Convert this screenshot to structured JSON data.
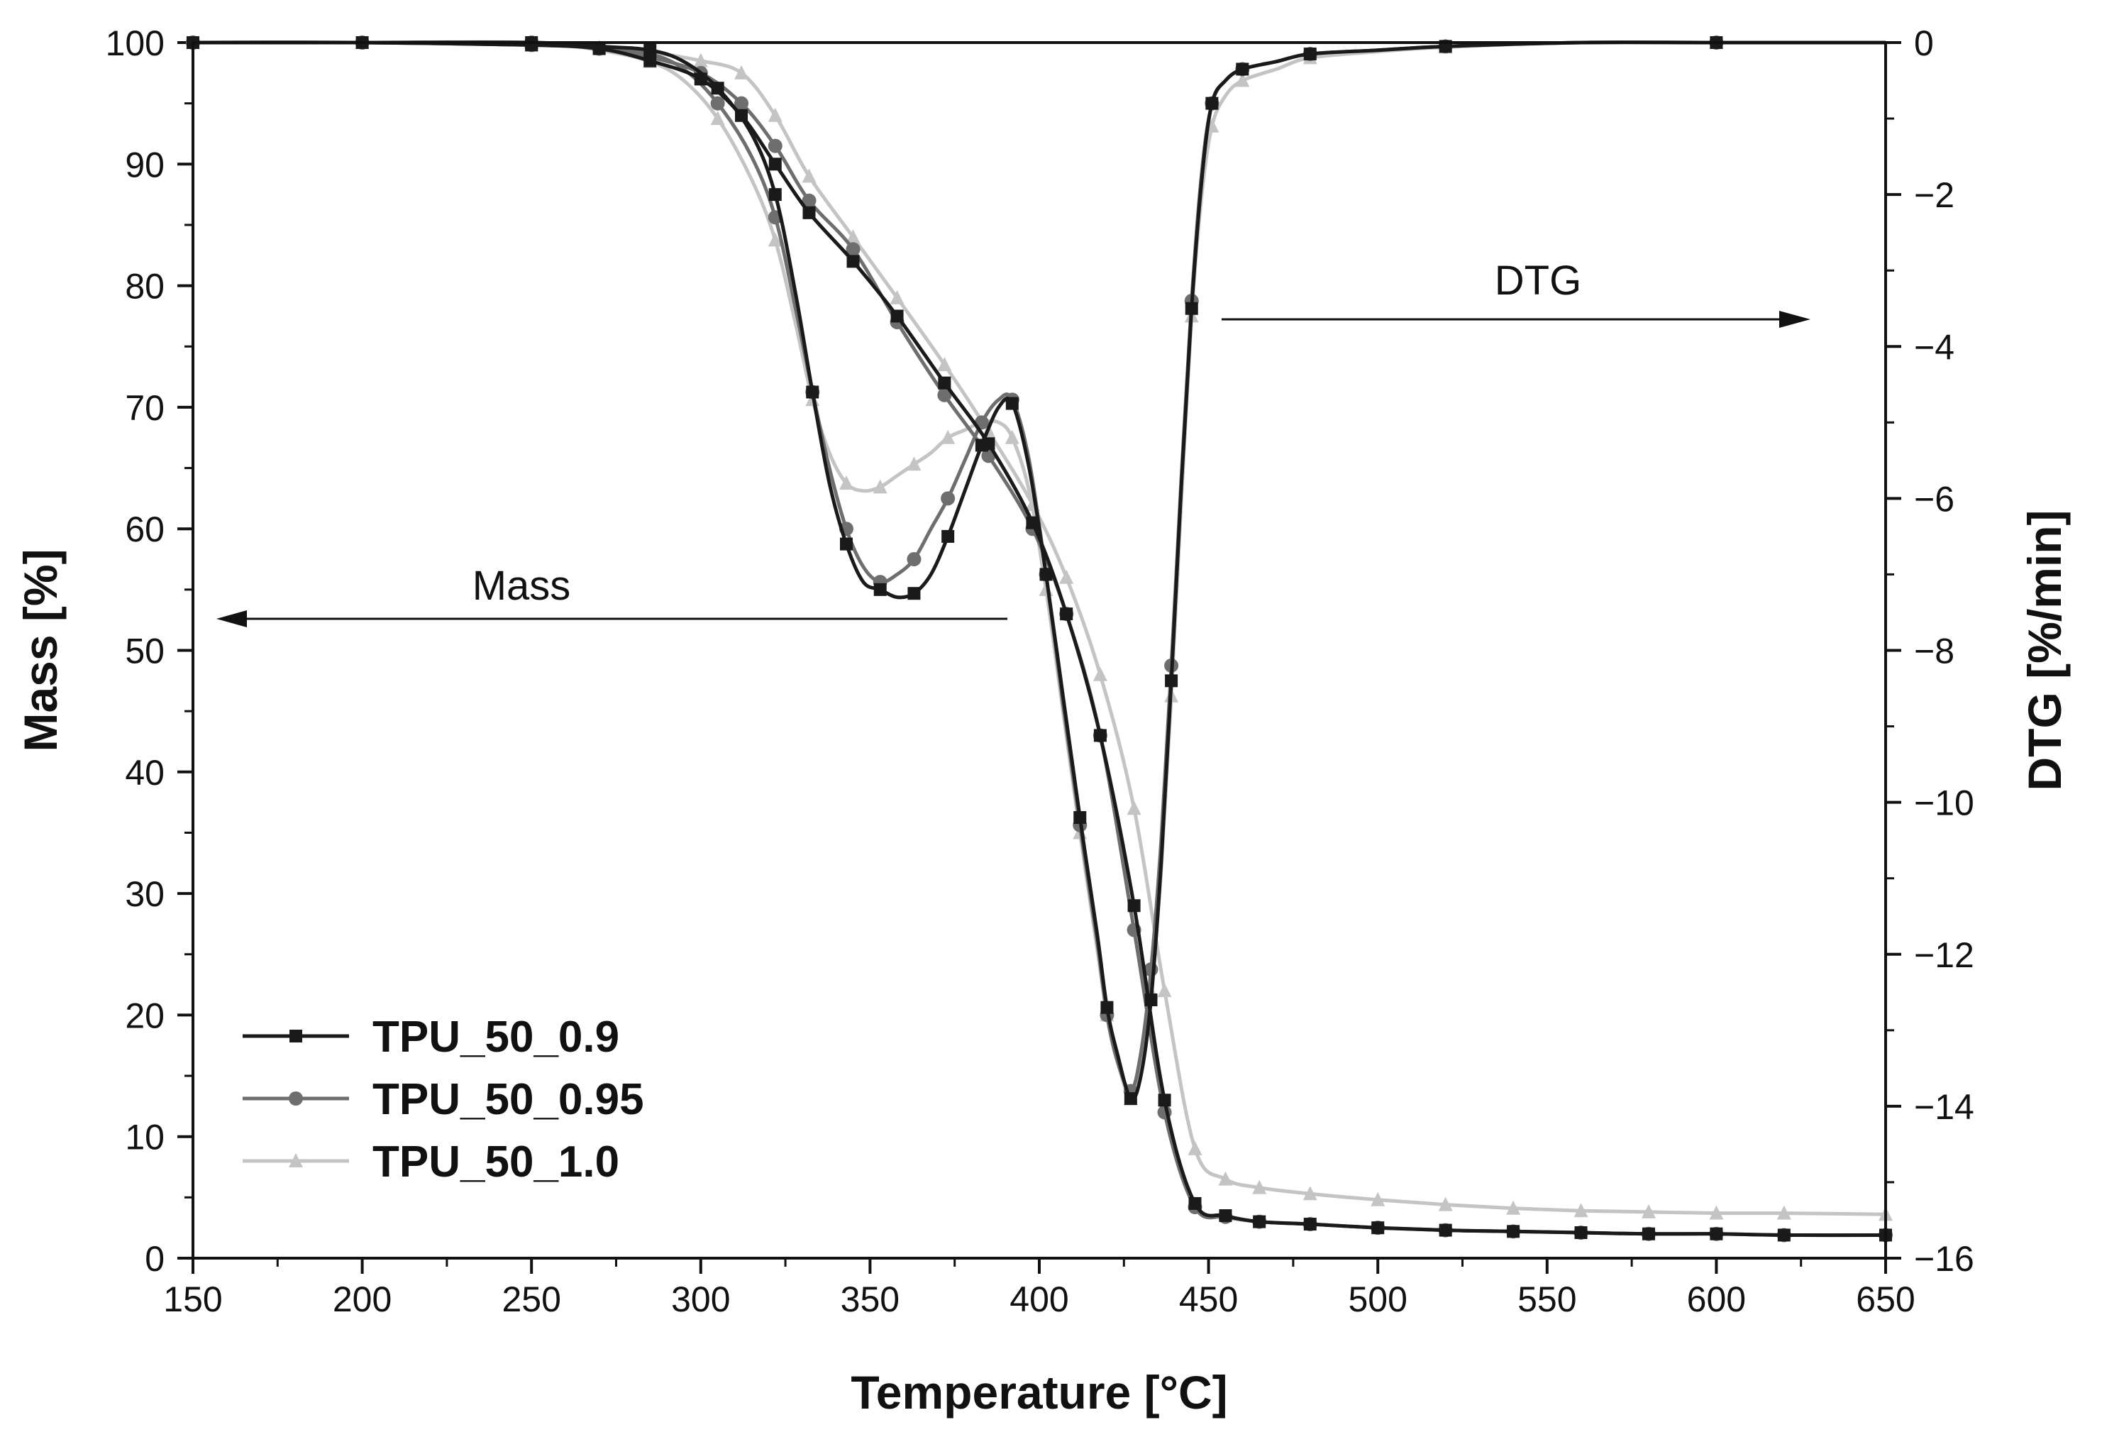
{
  "chart_data": {
    "type": "line",
    "title": "",
    "xlabel": "Temperature [°C]",
    "ylabel": "Mass [%]",
    "y2label": "DTG [%/min]",
    "xlim": [
      150,
      650
    ],
    "ylim": [
      0,
      100
    ],
    "y2lim": [
      -16,
      0
    ],
    "x_ticks": [
      150,
      200,
      250,
      300,
      350,
      400,
      450,
      500,
      550,
      600,
      650
    ],
    "y_ticks": [
      0,
      10,
      20,
      30,
      40,
      50,
      60,
      70,
      80,
      90,
      100
    ],
    "y2_ticks": [
      0,
      -2,
      -4,
      -6,
      -8,
      -10,
      -12,
      -14,
      -16
    ],
    "y2_tick_labels": [
      "0",
      "−2",
      "−4",
      "−6",
      "−8",
      "−10",
      "−12",
      "−14",
      "−16"
    ],
    "annotations": [
      {
        "text": "Mass",
        "arrow": "left",
        "axis": "mass"
      },
      {
        "text": "DTG",
        "arrow": "right",
        "axis": "dtg"
      }
    ],
    "legend_position": "bottom-left",
    "series": [
      {
        "name": "TPU_50_0.9",
        "color": "#1a1a1a",
        "marker": "square",
        "mass": {
          "x": [
            150,
            200,
            250,
            270,
            285,
            300,
            312,
            322,
            332,
            345,
            358,
            372,
            385,
            398,
            408,
            418,
            428,
            437,
            446,
            455,
            465,
            480,
            500,
            520,
            540,
            560,
            580,
            600,
            620,
            650
          ],
          "y": [
            100,
            100,
            99.8,
            99.5,
            98.5,
            97,
            94,
            90,
            86,
            82,
            77.5,
            72,
            67,
            60.5,
            53,
            43,
            29,
            13,
            4.5,
            3.5,
            3,
            2.8,
            2.5,
            2.3,
            2.2,
            2.1,
            2,
            2,
            1.9,
            1.9
          ]
        },
        "dtg": {
          "x": [
            150,
            200,
            250,
            270,
            285,
            295,
            305,
            315,
            322,
            328,
            333,
            338,
            343,
            348,
            353,
            358,
            363,
            368,
            373,
            378,
            383,
            388,
            392,
            397,
            402,
            407,
            412,
            417,
            420,
            423,
            427,
            430,
            433,
            436,
            439,
            442,
            445,
            448,
            451,
            455,
            460,
            470,
            480,
            500,
            520,
            560,
            600,
            650
          ],
          "y": [
            0,
            0,
            0,
            -0.05,
            -0.1,
            -0.25,
            -0.6,
            -1.2,
            -2.0,
            -3.3,
            -4.6,
            -5.8,
            -6.6,
            -7.1,
            -7.2,
            -7.3,
            -7.25,
            -7.0,
            -6.5,
            -5.9,
            -5.3,
            -4.8,
            -4.75,
            -5.6,
            -7.0,
            -8.6,
            -10.2,
            -11.7,
            -12.7,
            -13.3,
            -13.9,
            -13.6,
            -12.6,
            -10.8,
            -8.4,
            -5.8,
            -3.5,
            -1.8,
            -0.8,
            -0.5,
            -0.35,
            -0.25,
            -0.15,
            -0.1,
            -0.05,
            0,
            0,
            0
          ]
        }
      },
      {
        "name": "TPU_50_0.95",
        "color": "#6e6e6e",
        "marker": "circle",
        "mass": {
          "x": [
            150,
            200,
            250,
            270,
            285,
            300,
            312,
            322,
            332,
            345,
            358,
            372,
            385,
            398,
            408,
            418,
            428,
            437,
            446,
            455,
            465,
            480,
            500,
            520,
            540,
            560,
            580,
            600,
            620,
            650
          ],
          "y": [
            100,
            100,
            99.8,
            99.5,
            98.8,
            97.5,
            95,
            91.5,
            87,
            83,
            77,
            71,
            66,
            60,
            53,
            43,
            27,
            12,
            4.2,
            3.4,
            3,
            2.8,
            2.5,
            2.3,
            2.2,
            2.1,
            2,
            2,
            1.9,
            1.9
          ]
        },
        "dtg": {
          "x": [
            150,
            200,
            250,
            270,
            285,
            295,
            305,
            315,
            322,
            328,
            333,
            338,
            343,
            348,
            353,
            358,
            363,
            368,
            373,
            378,
            383,
            388,
            392,
            397,
            402,
            407,
            412,
            417,
            420,
            423,
            427,
            430,
            433,
            436,
            439,
            442,
            445,
            448,
            451,
            455,
            460,
            470,
            480,
            500,
            520,
            560,
            600,
            650
          ],
          "y": [
            0,
            0,
            0,
            -0.05,
            -0.15,
            -0.35,
            -0.8,
            -1.5,
            -2.3,
            -3.5,
            -4.6,
            -5.6,
            -6.4,
            -6.9,
            -7.1,
            -7.0,
            -6.8,
            -6.4,
            -6.0,
            -5.5,
            -5.0,
            -4.7,
            -4.7,
            -5.5,
            -7.0,
            -8.7,
            -10.3,
            -11.8,
            -12.8,
            -13.4,
            -13.8,
            -13.3,
            -12.2,
            -10.5,
            -8.2,
            -5.7,
            -3.4,
            -1.7,
            -0.8,
            -0.5,
            -0.35,
            -0.25,
            -0.15,
            -0.1,
            -0.05,
            0,
            0,
            0
          ]
        }
      },
      {
        "name": "TPU_50_1.0",
        "color": "#c4c4c4",
        "marker": "triangle",
        "mass": {
          "x": [
            150,
            200,
            250,
            270,
            285,
            300,
            312,
            322,
            332,
            345,
            358,
            372,
            385,
            398,
            408,
            418,
            428,
            437,
            446,
            455,
            465,
            480,
            500,
            520,
            540,
            560,
            580,
            600,
            620,
            650
          ],
          "y": [
            100,
            100,
            99.8,
            99.6,
            99.2,
            98.5,
            97.5,
            94,
            89,
            84,
            79,
            73.5,
            68,
            62,
            56,
            48,
            37,
            22,
            9,
            6.5,
            5.8,
            5.3,
            4.8,
            4.4,
            4.1,
            3.9,
            3.8,
            3.7,
            3.7,
            3.6
          ]
        },
        "dtg": {
          "x": [
            150,
            200,
            250,
            270,
            285,
            295,
            305,
            315,
            322,
            328,
            333,
            338,
            343,
            348,
            353,
            358,
            363,
            368,
            373,
            378,
            383,
            388,
            392,
            397,
            402,
            407,
            412,
            417,
            420,
            423,
            427,
            430,
            433,
            436,
            439,
            442,
            445,
            448,
            451,
            455,
            460,
            470,
            480,
            500,
            520,
            560,
            600,
            650
          ],
          "y": [
            0,
            0,
            0,
            -0.1,
            -0.25,
            -0.5,
            -1.0,
            -1.8,
            -2.6,
            -3.7,
            -4.7,
            -5.4,
            -5.8,
            -5.9,
            -5.85,
            -5.7,
            -5.55,
            -5.4,
            -5.2,
            -5.1,
            -5.0,
            -5.0,
            -5.2,
            -5.9,
            -7.2,
            -8.8,
            -10.4,
            -11.9,
            -12.8,
            -13.4,
            -13.9,
            -13.5,
            -12.5,
            -10.9,
            -8.6,
            -6.0,
            -3.6,
            -2.0,
            -1.1,
            -0.7,
            -0.5,
            -0.35,
            -0.2,
            -0.12,
            -0.06,
            0,
            0,
            0
          ]
        }
      }
    ]
  }
}
